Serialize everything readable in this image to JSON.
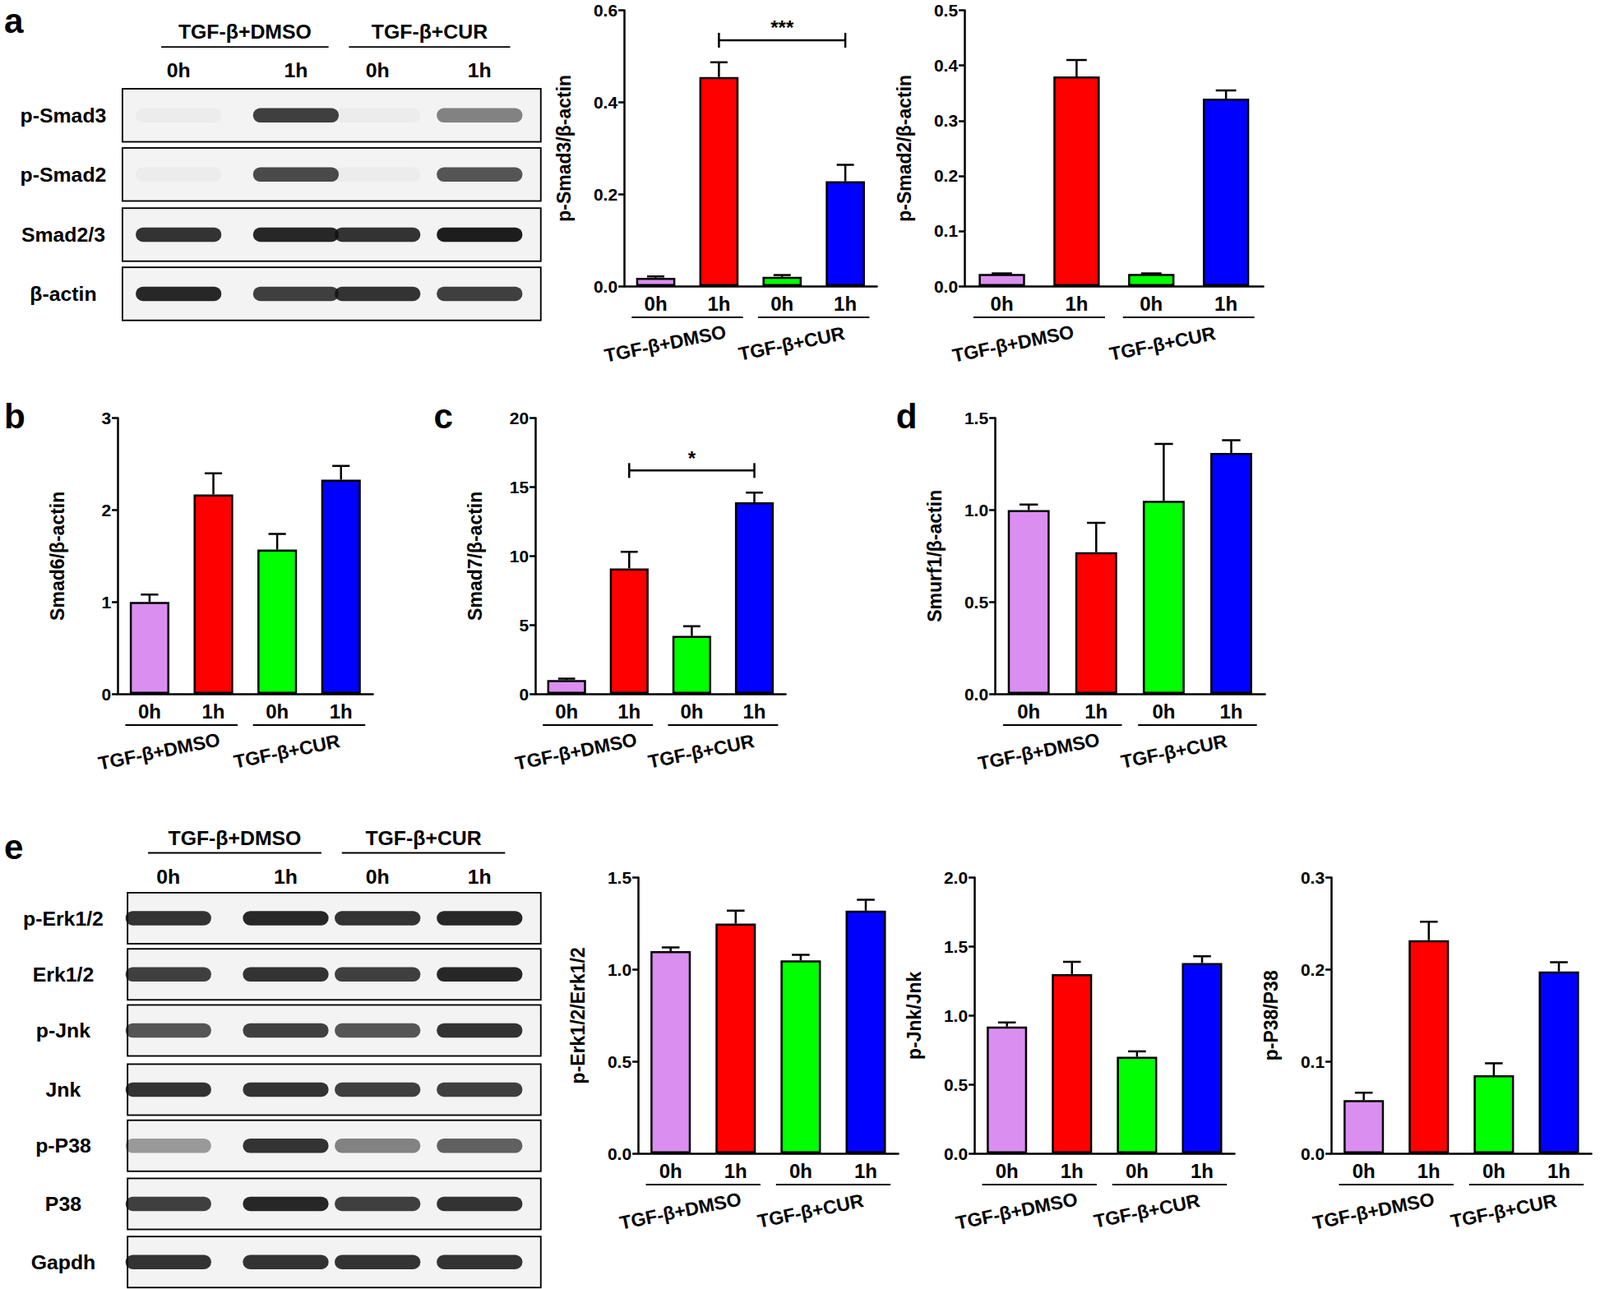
{
  "chart_data": [
    {
      "type": "bar",
      "ylabel": "p-Smad3/β-actin",
      "categories": [
        "0h",
        "1h",
        "0h",
        "1h"
      ],
      "groups": [
        "TGF-β+DMSO",
        "TGF-β+CUR"
      ],
      "values": [
        0.018,
        0.455,
        0.02,
        0.228
      ],
      "errors": [
        0.003,
        0.032,
        0.004,
        0.036
      ],
      "colors": [
        "#da8ff0",
        "#ff0000",
        "#00ff00",
        "#0000ff"
      ],
      "ylim": [
        0,
        0.6
      ],
      "yticks": [
        {
          "value": 0,
          "label": "0.0"
        },
        0.2,
        0.4,
        0.6
      ],
      "grid": false,
      "significance": [
        {
          "from": 1,
          "to": 3,
          "label": "***"
        }
      ]
    },
    {
      "type": "bar",
      "ylabel": "p-Smad2/β-actin",
      "categories": [
        "0h",
        "1h",
        "0h",
        "1h"
      ],
      "groups": [
        "TGF-β+DMSO",
        "TGF-β+CUR"
      ],
      "values": [
        0.022,
        0.38,
        0.022,
        0.34
      ],
      "errors": [
        0.001,
        0.03,
        0.001,
        0.015
      ],
      "colors": [
        "#da8ff0",
        "#ff0000",
        "#00ff00",
        "#0000ff"
      ],
      "ylim": [
        0,
        0.5
      ],
      "yticks": [
        {
          "value": 0,
          "label": "0.0"
        },
        0.1,
        0.2,
        0.3,
        0.4,
        0.5
      ],
      "grid": false
    },
    {
      "type": "bar",
      "panel": "b",
      "ylabel": "Smad6/β-actin",
      "categories": [
        "0h",
        "1h",
        "0h",
        "1h"
      ],
      "groups": [
        "TGF-β+DMSO",
        "TGF-β+CUR"
      ],
      "values": [
        1.0,
        2.17,
        1.57,
        2.33
      ],
      "errors": [
        0.08,
        0.23,
        0.17,
        0.15
      ],
      "colors": [
        "#da8ff0",
        "#ff0000",
        "#00ff00",
        "#0000ff"
      ],
      "ylim": [
        0,
        3
      ],
      "yticks": [
        0,
        1,
        2,
        3
      ],
      "grid": false
    },
    {
      "type": "bar",
      "panel": "c",
      "ylabel": "Smad7/β-actin",
      "categories": [
        "0h",
        "1h",
        "0h",
        "1h"
      ],
      "groups": [
        "TGF-β+DMSO",
        "TGF-β+CUR"
      ],
      "values": [
        1.0,
        9.1,
        4.2,
        13.9
      ],
      "errors": [
        0.1,
        1.2,
        0.7,
        0.7
      ],
      "colors": [
        "#da8ff0",
        "#ff0000",
        "#00ff00",
        "#0000ff"
      ],
      "ylim": [
        0,
        20
      ],
      "yticks": [
        0,
        5,
        10,
        15,
        20
      ],
      "grid": false,
      "significance": [
        {
          "from": 1,
          "to": 3,
          "label": "*"
        }
      ]
    },
    {
      "type": "bar",
      "panel": "d",
      "ylabel": "Smurf1/β-actin",
      "categories": [
        "0h",
        "1h",
        "0h",
        "1h"
      ],
      "groups": [
        "TGF-β+DMSO",
        "TGF-β+CUR"
      ],
      "values": [
        1.0,
        0.77,
        1.05,
        1.31
      ],
      "errors": [
        0.03,
        0.16,
        0.31,
        0.07
      ],
      "colors": [
        "#da8ff0",
        "#ff0000",
        "#00ff00",
        "#0000ff"
      ],
      "ylim": [
        0,
        1.5
      ],
      "yticks": [
        {
          "value": 0,
          "label": "0.0"
        },
        0.5,
        {
          "value": 1,
          "label": "1.0"
        },
        1.5
      ],
      "grid": false
    },
    {
      "type": "bar",
      "ylabel": "p-Erk1/2/Erk1/2",
      "categories": [
        "0h",
        "1h",
        "0h",
        "1h"
      ],
      "groups": [
        "TGF-β+DMSO",
        "TGF-β+CUR"
      ],
      "values": [
        1.1,
        1.25,
        1.05,
        1.32
      ],
      "errors": [
        0.02,
        0.07,
        0.03,
        0.06
      ],
      "colors": [
        "#da8ff0",
        "#ff0000",
        "#00ff00",
        "#0000ff"
      ],
      "ylim": [
        0,
        1.5
      ],
      "yticks": [
        {
          "value": 0,
          "label": "0.0"
        },
        0.5,
        {
          "value": 1,
          "label": "1.0"
        },
        1.5
      ],
      "grid": false
    },
    {
      "type": "bar",
      "ylabel": "p-Jnk/Jnk",
      "categories": [
        "0h",
        "1h",
        "0h",
        "1h"
      ],
      "groups": [
        "TGF-β+DMSO",
        "TGF-β+CUR"
      ],
      "values": [
        0.92,
        1.3,
        0.7,
        1.38
      ],
      "errors": [
        0.03,
        0.09,
        0.04,
        0.05
      ],
      "colors": [
        "#da8ff0",
        "#ff0000",
        "#00ff00",
        "#0000ff"
      ],
      "ylim": [
        0,
        2
      ],
      "yticks": [
        {
          "value": 0,
          "label": "0.0"
        },
        0.5,
        {
          "value": 1,
          "label": "1.0"
        },
        1.5,
        {
          "value": 2,
          "label": "2.0"
        }
      ],
      "grid": false
    },
    {
      "type": "bar",
      "ylabel": "p-P38/P38",
      "categories": [
        "0h",
        "1h",
        "0h",
        "1h"
      ],
      "groups": [
        "TGF-β+DMSO",
        "TGF-β+CUR"
      ],
      "values": [
        0.058,
        0.232,
        0.085,
        0.198
      ],
      "errors": [
        0.008,
        0.02,
        0.013,
        0.01
      ],
      "colors": [
        "#da8ff0",
        "#ff0000",
        "#00ff00",
        "#0000ff"
      ],
      "ylim": [
        0,
        0.3
      ],
      "yticks": [
        {
          "value": 0,
          "label": "0.0"
        },
        0.1,
        0.2,
        0.3
      ],
      "grid": false
    }
  ],
  "blots": [
    {
      "panel": "a",
      "groups": [
        "TGF-β+DMSO",
        "TGF-β+CUR"
      ],
      "lanes": [
        "0h",
        "1h",
        "0h",
        "1h"
      ],
      "rows": [
        {
          "label": "p-Smad3",
          "intensity": [
            0.03,
            0.8,
            0.03,
            0.5
          ]
        },
        {
          "label": "p-Smad2",
          "intensity": [
            0.03,
            0.75,
            0.03,
            0.7
          ]
        },
        {
          "label": "Smad2/3",
          "intensity": [
            0.85,
            0.9,
            0.85,
            0.95
          ]
        },
        {
          "label": "β-actin",
          "intensity": [
            0.9,
            0.8,
            0.85,
            0.8
          ]
        }
      ]
    },
    {
      "panel": "e",
      "groups": [
        "TGF-β+DMSO",
        "TGF-β+CUR"
      ],
      "lanes": [
        "0h",
        "1h",
        "0h",
        "1h"
      ],
      "rows": [
        {
          "label": "p-Erk1/2",
          "intensity": [
            0.85,
            0.9,
            0.85,
            0.9
          ]
        },
        {
          "label": "Erk1/2",
          "intensity": [
            0.8,
            0.85,
            0.8,
            0.9
          ]
        },
        {
          "label": "p-Jnk",
          "intensity": [
            0.7,
            0.8,
            0.7,
            0.85
          ]
        },
        {
          "label": "Jnk",
          "intensity": [
            0.85,
            0.85,
            0.8,
            0.8
          ]
        },
        {
          "label": "p-P38",
          "intensity": [
            0.4,
            0.85,
            0.5,
            0.65
          ]
        },
        {
          "label": "P38",
          "intensity": [
            0.8,
            0.9,
            0.8,
            0.85
          ]
        },
        {
          "label": "Gapdh",
          "intensity": [
            0.85,
            0.85,
            0.85,
            0.85
          ]
        }
      ]
    }
  ]
}
